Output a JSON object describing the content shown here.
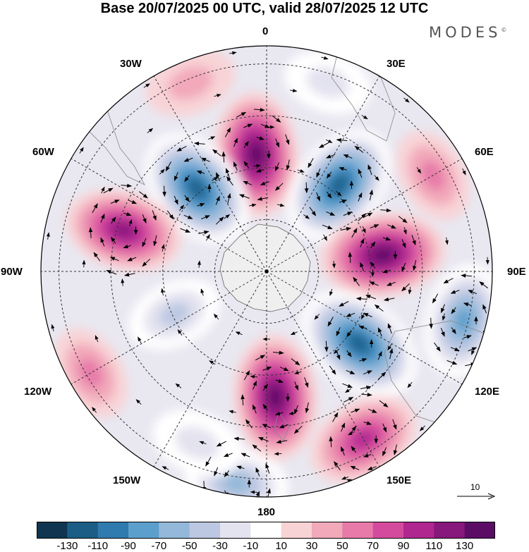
{
  "title": "Base 20/07/2025 00 UTC, valid 28/07/2025 12 UTC",
  "brand": "MODES",
  "brand_mark": "©",
  "map": {
    "projection": "south polar stereographic",
    "longitude_labels": {
      "lon_0": "0",
      "lon_30e": "30E",
      "lon_60e": "60E",
      "lon_90e": "90E",
      "lon_120e": "120E",
      "lon_150e": "150E",
      "lon_180": "180",
      "lon_150w": "150W",
      "lon_120w": "120W",
      "lon_90w": "90W",
      "lon_60w": "60W",
      "lon_30w": "30W"
    },
    "anomaly_centers": [
      {
        "lon": -5,
        "distance_from_pole": 0.52,
        "value": 120
      },
      {
        "lon": -40,
        "distance_from_pole": 0.48,
        "value": -120
      },
      {
        "lon": 40,
        "distance_from_pole": 0.5,
        "value": -120
      },
      {
        "lon": -74,
        "distance_from_pole": 0.66,
        "value": 100
      },
      {
        "lon": 82,
        "distance_from_pole": 0.52,
        "value": 120
      },
      {
        "lon": 128,
        "distance_from_pole": 0.52,
        "value": -130
      },
      {
        "lon": 104,
        "distance_from_pole": 0.9,
        "value": -90
      },
      {
        "lon": 176,
        "distance_from_pole": 0.56,
        "value": 120
      },
      {
        "lon": 150,
        "distance_from_pole": 0.86,
        "value": 90
      },
      {
        "lon": -172,
        "distance_from_pole": 0.95,
        "value": -60
      },
      {
        "lon": -120,
        "distance_from_pole": 0.9,
        "value": 40
      },
      {
        "lon": -115,
        "distance_from_pole": 0.45,
        "value": -40
      },
      {
        "lon": -158,
        "distance_from_pole": 0.82,
        "value": -30
      },
      {
        "lon": -22,
        "distance_from_pole": 0.9,
        "value": 30
      },
      {
        "lon": 60,
        "distance_from_pole": 0.85,
        "value": 40
      },
      {
        "lon": 18,
        "distance_from_pole": 0.88,
        "value": -20
      }
    ]
  },
  "reference_vector": {
    "value": "10"
  },
  "colorbar": {
    "colors": [
      "#0f3550",
      "#1b5d85",
      "#2f7aae",
      "#5c9fcd",
      "#93b8d9",
      "#bcc8e2",
      "#e3e2ef",
      "#ffffff",
      "#f8d3d6",
      "#f2a9ba",
      "#e77aa9",
      "#d44b9e",
      "#b02790",
      "#87187c",
      "#5b0d66"
    ],
    "tick_labels": [
      "-130",
      "-110",
      "-90",
      "-70",
      "-50",
      "-30",
      "-10",
      "10",
      "30",
      "50",
      "70",
      "90",
      "110",
      "130"
    ]
  }
}
